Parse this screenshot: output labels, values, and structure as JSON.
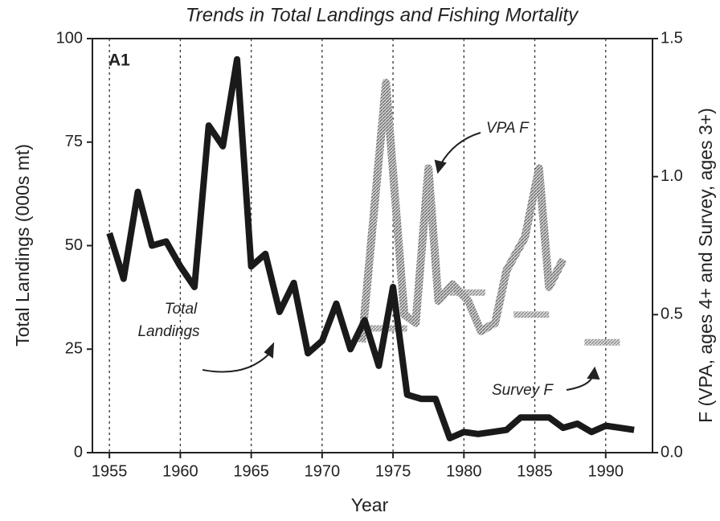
{
  "chart_data": {
    "type": "line",
    "title": "Trends in Total Landings and Fishing Mortality",
    "x_label": "Year",
    "y_label": "Total Landings (000s mt)",
    "y2_label": "F (VPA, ages 4+ and Survey, ages 3+)",
    "annotations": [
      "A1",
      "Total",
      "Landings",
      "VPA F",
      "Survey F"
    ],
    "xlim": [
      1953.8,
      1993.3
    ],
    "xticks": [
      1955,
      1960,
      1965,
      1970,
      1975,
      1980,
      1985,
      1990
    ],
    "ylim": [
      0,
      100
    ],
    "yticks": [
      0,
      25,
      50,
      75,
      100
    ],
    "y2lim": [
      0,
      1.5
    ],
    "y2ticks": [
      {
        "value": 0,
        "label": "0.0"
      },
      0.5,
      {
        "value": 1,
        "label": "1.0"
      },
      1.5
    ],
    "grid": true,
    "series": [
      {
        "name": "Total Landings",
        "color": "#1a1a1a",
        "x": [
          1955,
          1956,
          1957,
          1958,
          1959,
          1960,
          1961,
          1962,
          1963,
          1964,
          1965,
          1966,
          1967,
          1968,
          1969,
          1970,
          1971,
          1972,
          1973,
          1974,
          1975,
          1976,
          1977,
          1978,
          1979,
          1980,
          1981,
          1982,
          1983,
          1984,
          1985,
          1986,
          1987,
          1988,
          1989,
          1990,
          1991,
          1992
        ],
        "values": [
          53,
          42,
          63,
          50,
          51,
          45,
          40,
          79,
          74,
          95,
          45,
          48,
          34,
          41,
          24,
          27,
          36,
          25,
          32,
          21,
          40,
          14,
          13,
          13,
          3.5,
          5,
          4.5,
          5,
          5.5,
          8.5,
          8.5,
          8.5,
          6,
          7,
          5,
          6.5,
          6,
          5.5
        ]
      },
      {
        "name": "VPA F",
        "color": "#9a9a9a",
        "axis": "y2",
        "x": [
          1972.8,
          1974.5,
          1975.8,
          1976.6,
          1977.5,
          1978.2,
          1979.2,
          1980.3,
          1981.2,
          1982.2,
          1983,
          1984.3,
          1985.3,
          1986,
          1987
        ],
        "values": [
          0.4,
          1.34,
          0.5,
          0.47,
          1.03,
          0.55,
          0.61,
          0.55,
          0.44,
          0.47,
          0.66,
          0.78,
          1.03,
          0.6,
          0.7
        ]
      },
      {
        "name": "Survey F",
        "color": "#b5b5b5",
        "axis": "y2",
        "x": [
          1973,
          1976,
          1977,
          1979,
          1981.5,
          1982,
          1983.5,
          1986,
          1987,
          1988.5,
          1991
        ],
        "values": [
          0.45,
          0.45,
          null,
          0.58,
          0.58,
          null,
          0.5,
          0.5,
          null,
          0.4,
          0.4
        ]
      }
    ]
  }
}
